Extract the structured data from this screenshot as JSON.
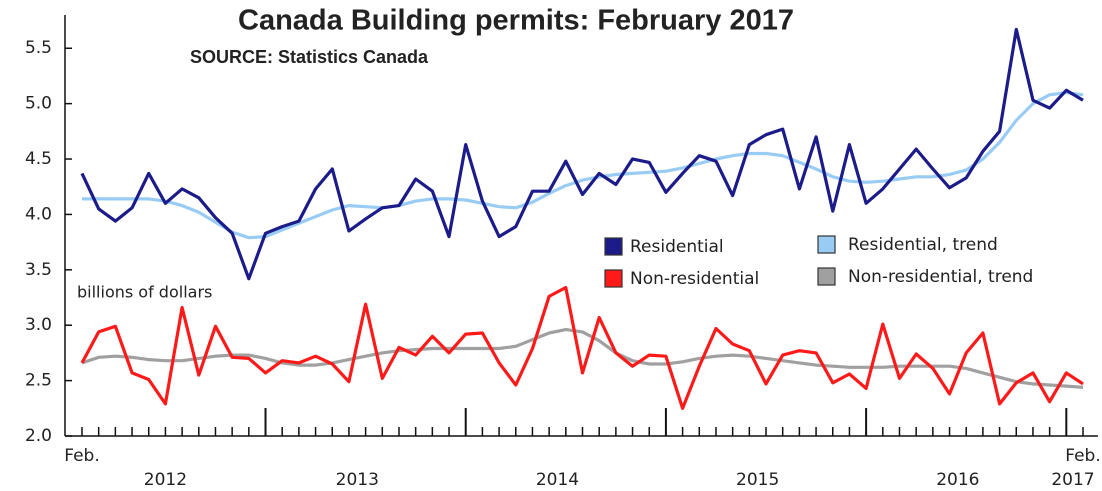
{
  "chart_data": {
    "type": "line",
    "title": "Canada Building permits: February 2017",
    "subtitle": "SOURCE:  Statistics Canada",
    "annotation": "billions of dollars",
    "categories": [
      "Feb.",
      null,
      null,
      null,
      null,
      null,
      null,
      null,
      null,
      null,
      null,
      null,
      null,
      null,
      null,
      null,
      null,
      null,
      null,
      null,
      null,
      null,
      null,
      null,
      null,
      null,
      null,
      null,
      null,
      null,
      null,
      null,
      null,
      null,
      null,
      null,
      null,
      null,
      null,
      null,
      null,
      null,
      null,
      null,
      null,
      null,
      null,
      null,
      null,
      null,
      null,
      null,
      null,
      null,
      null,
      null,
      null,
      null,
      null,
      null,
      "Feb."
    ],
    "year_labels": [
      "2012",
      "2013",
      "2014",
      "2015",
      "2016",
      "2017"
    ],
    "ylim": [
      2.0,
      5.8
    ],
    "yticks": [
      {
        "value": 2,
        "label": "2.0"
      },
      2.5,
      {
        "value": 3,
        "label": "3.0"
      },
      3.5,
      {
        "value": 4,
        "label": "4.0"
      },
      4.5,
      {
        "value": 5,
        "label": "5.0"
      },
      5.5
    ],
    "series": [
      {
        "name": "Residential",
        "color": "#1b1b8a",
        "values": [
          4.37,
          4.05,
          3.94,
          4.06,
          4.37,
          4.1,
          4.23,
          4.15,
          3.97,
          3.83,
          3.42,
          3.83,
          3.89,
          3.94,
          4.23,
          4.41,
          3.85,
          3.96,
          4.06,
          4.08,
          4.32,
          4.21,
          3.8,
          4.63,
          4.12,
          3.8,
          3.89,
          4.21,
          4.21,
          4.48,
          4.18,
          4.37,
          4.27,
          4.5,
          4.47,
          4.2,
          4.37,
          4.53,
          4.48,
          4.17,
          4.63,
          4.72,
          4.77,
          4.23,
          4.7,
          4.03,
          4.63,
          4.1,
          4.23,
          4.41,
          4.59,
          4.41,
          4.24,
          4.33,
          4.57,
          4.75,
          5.67,
          5.03,
          4.96,
          5.12,
          5.03
        ]
      },
      {
        "name": "Non-residential",
        "color": "#ff1a1a",
        "values": [
          2.66,
          2.94,
          2.99,
          2.57,
          2.51,
          2.29,
          3.16,
          2.55,
          2.99,
          2.71,
          2.7,
          2.57,
          2.68,
          2.66,
          2.72,
          2.65,
          2.49,
          3.19,
          2.52,
          2.8,
          2.73,
          2.9,
          2.75,
          2.92,
          2.93,
          2.66,
          2.46,
          2.79,
          3.26,
          3.34,
          2.57,
          3.07,
          2.75,
          2.63,
          2.73,
          2.72,
          2.25,
          2.63,
          2.97,
          2.83,
          2.77,
          2.47,
          2.73,
          2.77,
          2.75,
          2.48,
          2.56,
          2.43,
          3.01,
          2.52,
          2.74,
          2.61,
          2.38,
          2.75,
          2.93,
          2.29,
          2.48,
          2.57,
          2.31,
          2.57,
          2.47
        ]
      },
      {
        "name": "Residential, trend",
        "color": "#99ccf5",
        "values": [
          4.14,
          4.14,
          4.14,
          4.14,
          4.14,
          4.12,
          4.08,
          4.02,
          3.93,
          3.84,
          3.79,
          3.8,
          3.86,
          3.92,
          3.98,
          4.04,
          4.08,
          4.07,
          4.06,
          4.08,
          4.12,
          4.14,
          4.14,
          4.13,
          4.1,
          4.07,
          4.06,
          4.11,
          4.19,
          4.26,
          4.31,
          4.34,
          4.36,
          4.37,
          4.38,
          4.39,
          4.42,
          4.46,
          4.5,
          4.53,
          4.55,
          4.55,
          4.53,
          4.47,
          4.41,
          4.34,
          4.3,
          4.29,
          4.3,
          4.32,
          4.34,
          4.34,
          4.36,
          4.4,
          4.5,
          4.65,
          4.85,
          5.0,
          5.08,
          5.1,
          5.08
        ]
      },
      {
        "name": "Non-residential, trend",
        "color": "#a0a0a0",
        "values": [
          2.66,
          2.71,
          2.72,
          2.71,
          2.69,
          2.68,
          2.68,
          2.7,
          2.72,
          2.73,
          2.73,
          2.7,
          2.66,
          2.64,
          2.64,
          2.66,
          2.69,
          2.72,
          2.75,
          2.77,
          2.78,
          2.79,
          2.79,
          2.79,
          2.79,
          2.79,
          2.81,
          2.87,
          2.93,
          2.96,
          2.94,
          2.86,
          2.75,
          2.68,
          2.65,
          2.65,
          2.67,
          2.7,
          2.72,
          2.73,
          2.72,
          2.7,
          2.68,
          2.66,
          2.64,
          2.63,
          2.62,
          2.62,
          2.62,
          2.63,
          2.63,
          2.63,
          2.63,
          2.61,
          2.57,
          2.53,
          2.49,
          2.47,
          2.46,
          2.45,
          2.44
        ]
      }
    ]
  }
}
